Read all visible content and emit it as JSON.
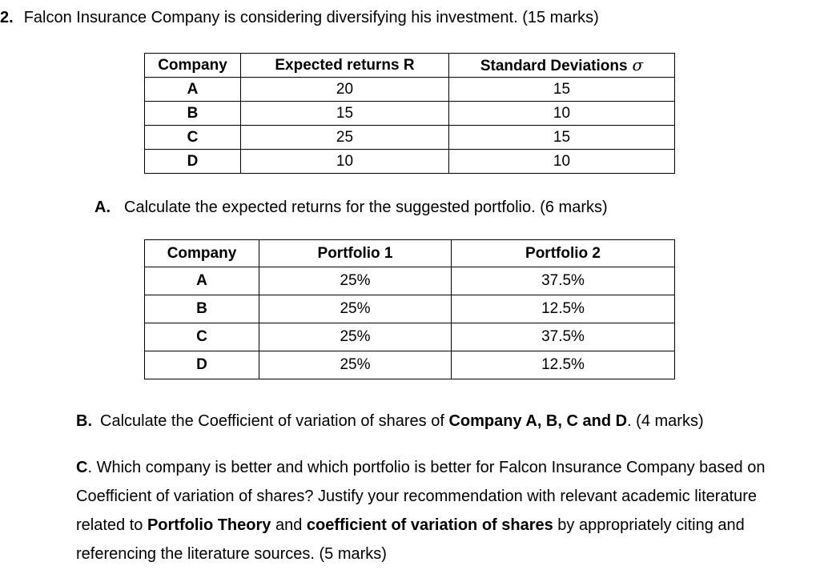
{
  "question": {
    "number": "2.",
    "text": "Falcon Insurance Company is considering diversifying his investment. (15 marks)"
  },
  "returns_table": {
    "col_company": "Company",
    "col_returns": "Expected returns R",
    "col_std": "Standard Deviations",
    "sigma": "σ",
    "rows": [
      {
        "company": "A",
        "ret": "20",
        "sd": "15"
      },
      {
        "company": "B",
        "ret": "15",
        "sd": "10"
      },
      {
        "company": "C",
        "ret": "25",
        "sd": "15"
      },
      {
        "company": "D",
        "ret": "10",
        "sd": "10"
      }
    ]
  },
  "part_a": {
    "label": "A.",
    "text": "Calculate the expected returns for the suggested portfolio. (6 marks)"
  },
  "portfolio_table": {
    "col_company": "Company",
    "col_p1": "Portfolio 1",
    "col_p2": "Portfolio 2",
    "rows": [
      {
        "company": "A",
        "p1": "25%",
        "p2": "37.5%"
      },
      {
        "company": "B",
        "p1": "25%",
        "p2": "12.5%"
      },
      {
        "company": "C",
        "p1": "25%",
        "p2": "37.5%"
      },
      {
        "company": "D",
        "p1": "25%",
        "p2": "12.5%"
      }
    ]
  },
  "part_b": {
    "label": "B.",
    "seg1": "Calculate the Coefficient of variation of shares of ",
    "bold1": "Company A, B, C and D",
    "seg2": ". (4 marks)"
  },
  "part_c": {
    "label": "C",
    "seg1": ". Which company is better and which portfolio is better for Falcon Insurance Company based on Coefficient of variation of shares? Justify your recommendation with relevant academic literature related to ",
    "bold1": "Portfolio Theory",
    "seg2": " and ",
    "bold2": "coefficient of variation of shares",
    "seg3": " by appropriately citing and referencing the literature sources. (5 marks)"
  }
}
